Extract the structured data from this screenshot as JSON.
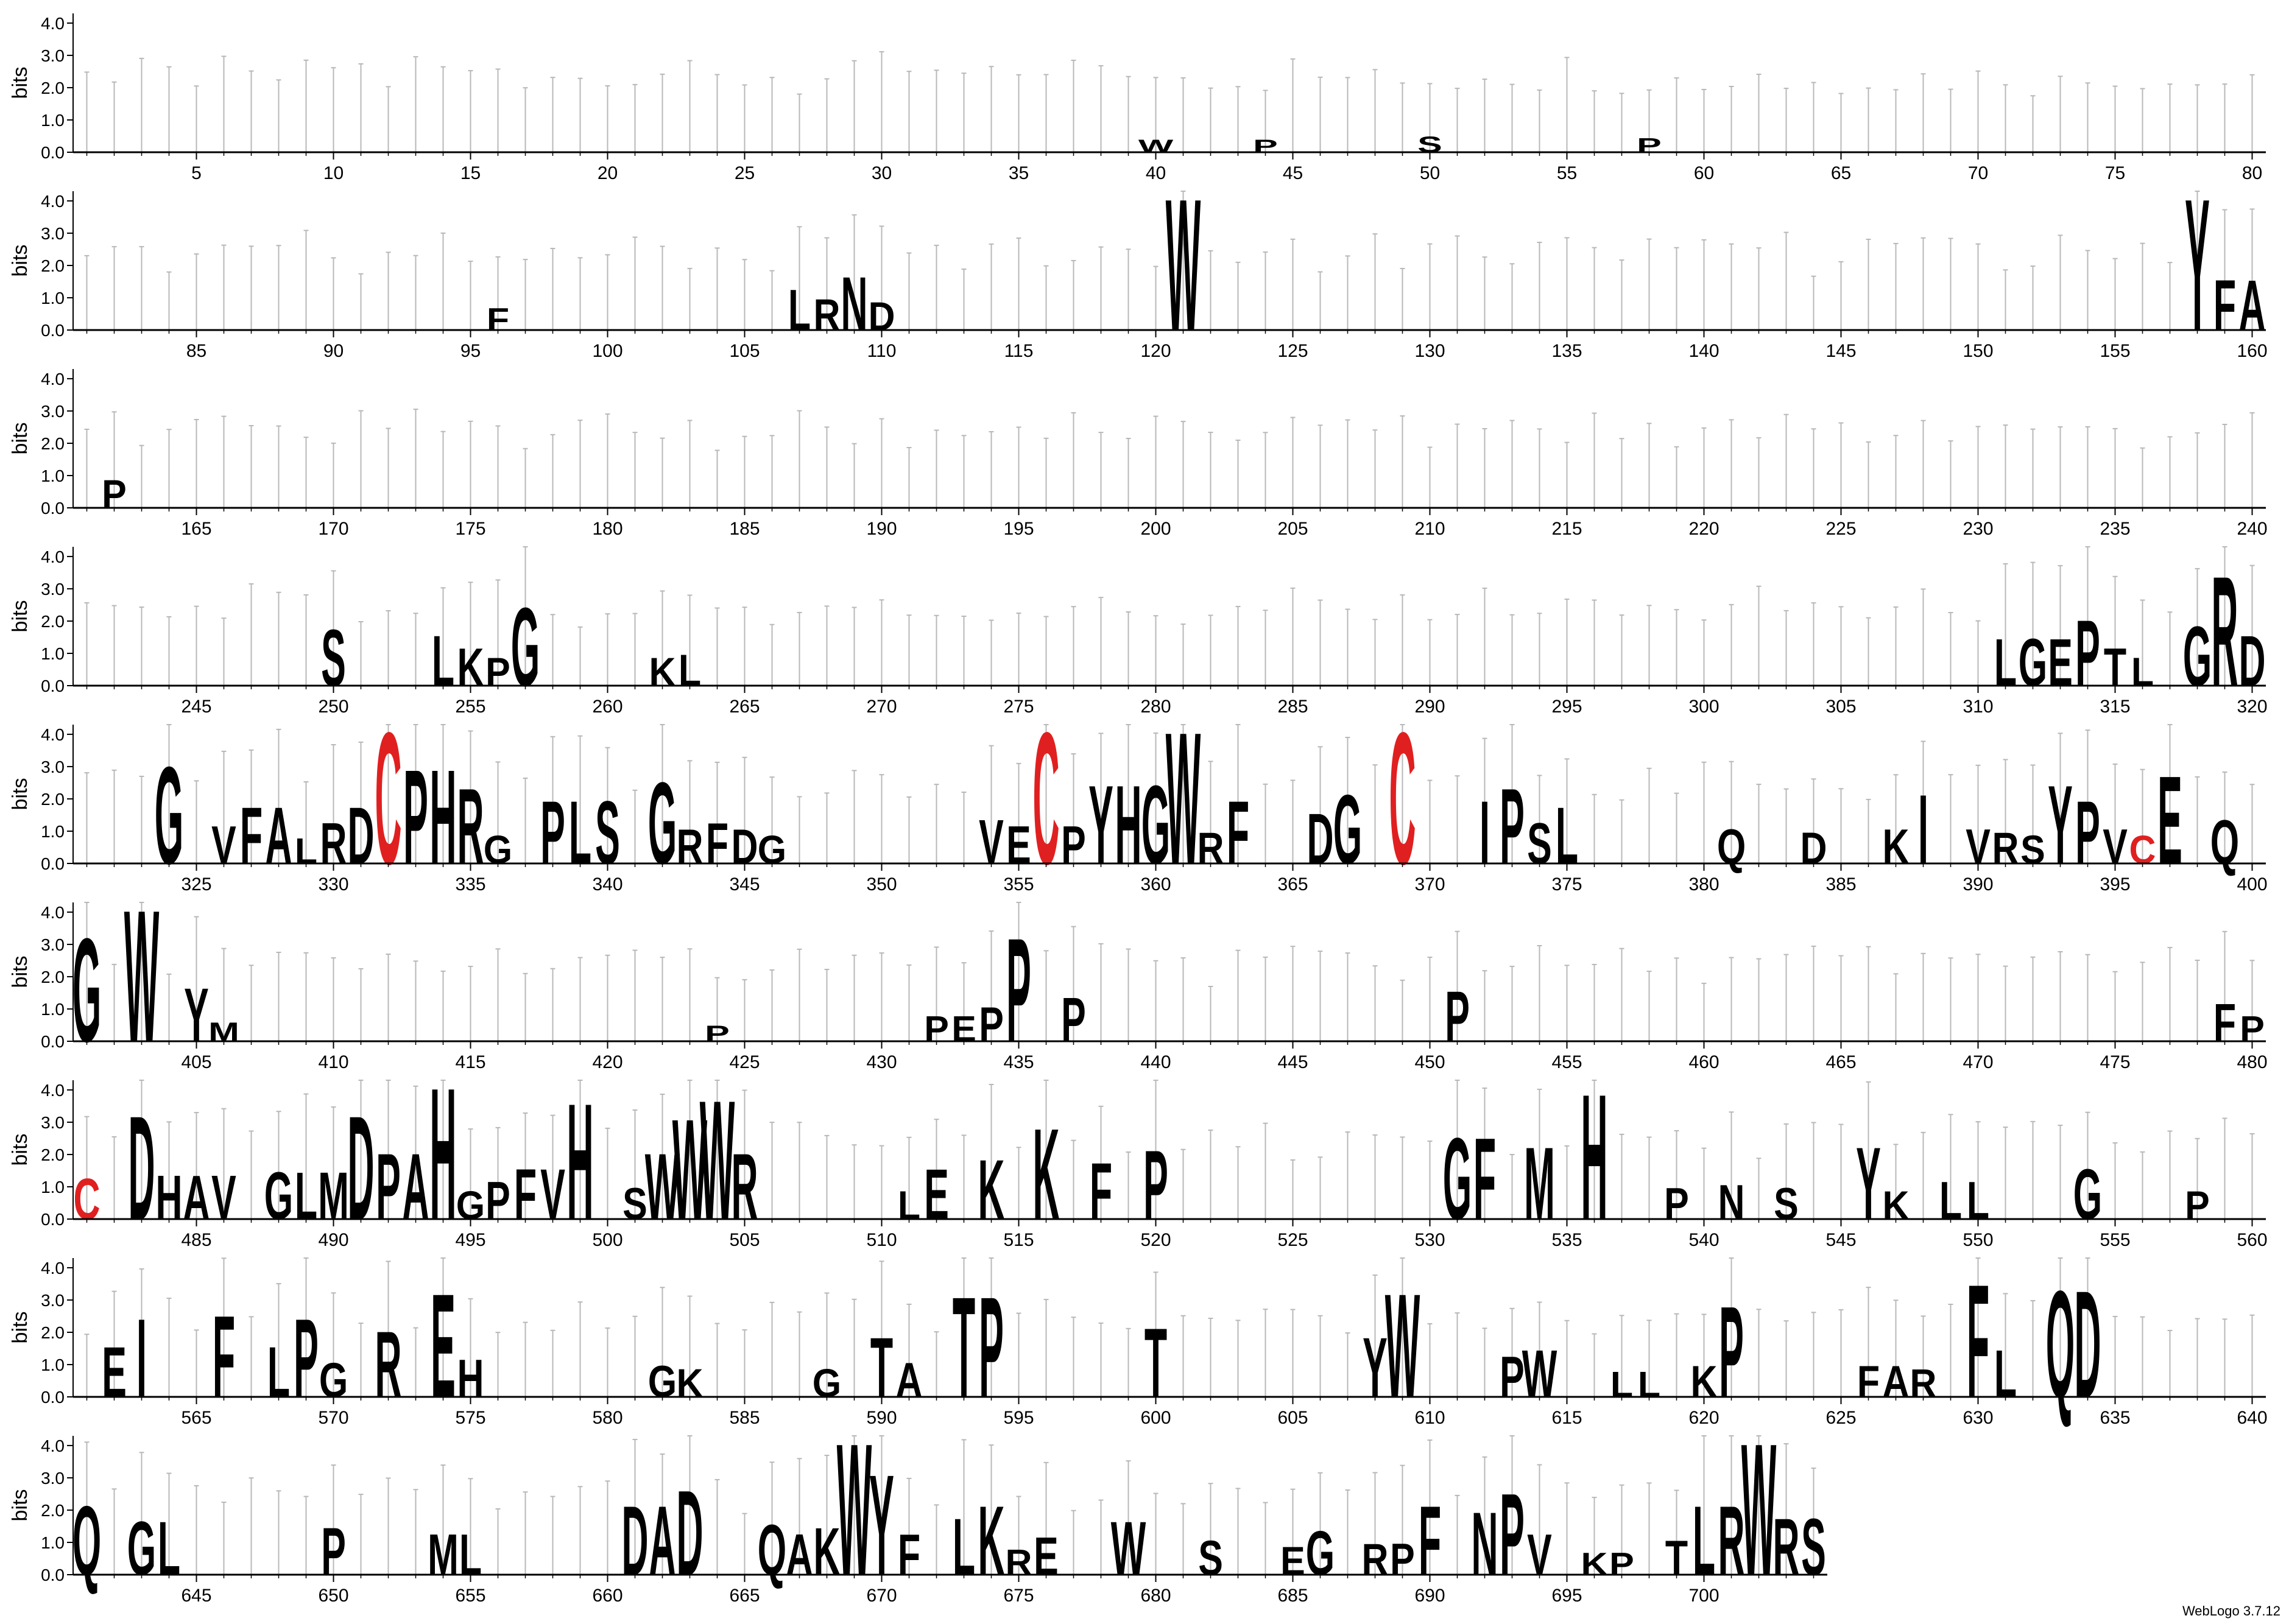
{
  "app": {
    "version_label": "WebLogo 3.7.12"
  },
  "colors": {
    "default_letter": "#000000",
    "cysteine": "#e02020",
    "error_bar": "#b8b8b8",
    "axis": "#000000"
  },
  "chart_data": {
    "type": "sequence-logo",
    "ylabel": "bits",
    "ylim": [
      0,
      4.3
    ],
    "yticks": [
      "0.0",
      "1.0",
      "2.0",
      "3.0",
      "4.0"
    ],
    "rows": [
      {
        "start": 1,
        "end": 80
      },
      {
        "start": 81,
        "end": 160
      },
      {
        "start": 161,
        "end": 240
      },
      {
        "start": 241,
        "end": 320
      },
      {
        "start": 321,
        "end": 400
      },
      {
        "start": 401,
        "end": 480
      },
      {
        "start": 481,
        "end": 560
      },
      {
        "start": 561,
        "end": 640
      },
      {
        "start": 641,
        "end": 704
      }
    ],
    "xtick_every": 5,
    "columns": [
      {
        "pos": 40,
        "l": "W",
        "h": 0.4
      },
      {
        "pos": 44,
        "l": "P",
        "h": 0.4
      },
      {
        "pos": 50,
        "l": "S",
        "h": 0.5
      },
      {
        "pos": 58,
        "l": "P",
        "h": 0.45
      },
      {
        "pos": 96,
        "l": "F",
        "h": 0.7
      },
      {
        "pos": 107,
        "l": "L",
        "h": 1.3
      },
      {
        "pos": 108,
        "l": "R",
        "h": 1.0
      },
      {
        "pos": 109,
        "l": "N",
        "h": 1.7
      },
      {
        "pos": 110,
        "l": "D",
        "h": 0.9
      },
      {
        "pos": 121,
        "l": "W",
        "h": 4.2
      },
      {
        "pos": 158,
        "l": "Y",
        "h": 4.2
      },
      {
        "pos": 159,
        "l": "F",
        "h": 1.6
      },
      {
        "pos": 160,
        "l": "A",
        "h": 1.6
      },
      {
        "pos": 162,
        "l": "P",
        "h": 0.9
      },
      {
        "pos": 250,
        "l": "S",
        "h": 1.8
      },
      {
        "pos": 254,
        "l": "L",
        "h": 1.6
      },
      {
        "pos": 255,
        "l": "K",
        "h": 1.2
      },
      {
        "pos": 256,
        "l": "P",
        "h": 0.9
      },
      {
        "pos": 257,
        "l": "G",
        "h": 2.5
      },
      {
        "pos": 262,
        "l": "K",
        "h": 0.9
      },
      {
        "pos": 263,
        "l": "L",
        "h": 1.0
      },
      {
        "pos": 311,
        "l": "L",
        "h": 1.5
      },
      {
        "pos": 312,
        "l": "G",
        "h": 1.5
      },
      {
        "pos": 313,
        "l": "E",
        "h": 1.5
      },
      {
        "pos": 314,
        "l": "P",
        "h": 2.1
      },
      {
        "pos": 315,
        "l": "T",
        "h": 1.2
      },
      {
        "pos": 316,
        "l": "L",
        "h": 0.9
      },
      {
        "pos": 318,
        "l": "G",
        "h": 1.9
      },
      {
        "pos": 319,
        "l": "R",
        "h": 3.5
      },
      {
        "pos": 320,
        "l": "D",
        "h": 1.6
      },
      {
        "pos": 324,
        "l": "G",
        "h": 3.1
      },
      {
        "pos": 326,
        "l": "V",
        "h": 1.2
      },
      {
        "pos": 327,
        "l": "F",
        "h": 1.8
      },
      {
        "pos": 328,
        "l": "A",
        "h": 1.8
      },
      {
        "pos": 329,
        "l": "L",
        "h": 0.8
      },
      {
        "pos": 330,
        "l": "R",
        "h": 1.3
      },
      {
        "pos": 331,
        "l": "D",
        "h": 1.8
      },
      {
        "pos": 332,
        "l": "C",
        "h": 4.2,
        "c": "red"
      },
      {
        "pos": 333,
        "l": "P",
        "h": 3.0
      },
      {
        "pos": 334,
        "l": "H",
        "h": 3.0
      },
      {
        "pos": 335,
        "l": "R",
        "h": 2.4
      },
      {
        "pos": 336,
        "l": "G",
        "h": 0.9
      },
      {
        "pos": 338,
        "l": "P",
        "h": 2.0
      },
      {
        "pos": 339,
        "l": "L",
        "h": 2.0
      },
      {
        "pos": 340,
        "l": "S",
        "h": 2.0
      },
      {
        "pos": 342,
        "l": "G",
        "h": 2.6
      },
      {
        "pos": 343,
        "l": "R",
        "h": 1.1
      },
      {
        "pos": 344,
        "l": "F",
        "h": 1.3
      },
      {
        "pos": 345,
        "l": "D",
        "h": 1.1
      },
      {
        "pos": 346,
        "l": "G",
        "h": 0.9
      },
      {
        "pos": 354,
        "l": "V",
        "h": 1.4
      },
      {
        "pos": 355,
        "l": "E",
        "h": 1.2
      },
      {
        "pos": 356,
        "l": "C",
        "h": 4.2,
        "c": "red"
      },
      {
        "pos": 357,
        "l": "P",
        "h": 1.2
      },
      {
        "pos": 358,
        "l": "Y",
        "h": 2.5
      },
      {
        "pos": 359,
        "l": "H",
        "h": 2.5
      },
      {
        "pos": 360,
        "l": "G",
        "h": 2.5
      },
      {
        "pos": 361,
        "l": "W",
        "h": 4.2
      },
      {
        "pos": 362,
        "l": "R",
        "h": 1.0
      },
      {
        "pos": 363,
        "l": "F",
        "h": 2.0
      },
      {
        "pos": 366,
        "l": "D",
        "h": 1.6
      },
      {
        "pos": 367,
        "l": "G",
        "h": 2.2
      },
      {
        "pos": 369,
        "l": "C",
        "h": 4.2,
        "c": "red"
      },
      {
        "pos": 372,
        "l": "I",
        "h": 2.0
      },
      {
        "pos": 373,
        "l": "P",
        "h": 2.4
      },
      {
        "pos": 374,
        "l": "S",
        "h": 1.3
      },
      {
        "pos": 375,
        "l": "L",
        "h": 1.8
      },
      {
        "pos": 381,
        "l": "Q",
        "h": 1.1
      },
      {
        "pos": 384,
        "l": "D",
        "h": 1.0
      },
      {
        "pos": 387,
        "l": "K",
        "h": 1.1
      },
      {
        "pos": 388,
        "l": "I",
        "h": 2.2
      },
      {
        "pos": 390,
        "l": "V",
        "h": 1.1
      },
      {
        "pos": 391,
        "l": "R",
        "h": 1.0
      },
      {
        "pos": 392,
        "l": "S",
        "h": 0.9
      },
      {
        "pos": 393,
        "l": "Y",
        "h": 2.5
      },
      {
        "pos": 394,
        "l": "P",
        "h": 2.0
      },
      {
        "pos": 395,
        "l": "V",
        "h": 1.1
      },
      {
        "pos": 396,
        "l": "C",
        "h": 0.9,
        "c": "red"
      },
      {
        "pos": 397,
        "l": "E",
        "h": 2.8
      },
      {
        "pos": 399,
        "l": "Q",
        "h": 1.4
      },
      {
        "pos": 401,
        "l": "G",
        "h": 3.3
      },
      {
        "pos": 403,
        "l": "W",
        "h": 4.2
      },
      {
        "pos": 405,
        "l": "Y",
        "h": 1.7
      },
      {
        "pos": 406,
        "l": "M",
        "h": 0.6
      },
      {
        "pos": 424,
        "l": "P",
        "h": 0.5
      },
      {
        "pos": 432,
        "l": "P",
        "h": 0.8
      },
      {
        "pos": 433,
        "l": "E",
        "h": 0.8
      },
      {
        "pos": 434,
        "l": "P",
        "h": 1.1
      },
      {
        "pos": 435,
        "l": "P",
        "h": 3.3
      },
      {
        "pos": 437,
        "l": "P",
        "h": 1.4
      },
      {
        "pos": 451,
        "l": "P",
        "h": 1.6
      },
      {
        "pos": 479,
        "l": "F",
        "h": 1.2
      },
      {
        "pos": 480,
        "l": "P",
        "h": 0.8
      },
      {
        "pos": 481,
        "l": "C",
        "h": 1.3,
        "c": "red"
      },
      {
        "pos": 483,
        "l": "D",
        "h": 3.3
      },
      {
        "pos": 484,
        "l": "H",
        "h": 1.4
      },
      {
        "pos": 485,
        "l": "A",
        "h": 1.4
      },
      {
        "pos": 486,
        "l": "V",
        "h": 1.4
      },
      {
        "pos": 488,
        "l": "G",
        "h": 1.5
      },
      {
        "pos": 489,
        "l": "L",
        "h": 1.5
      },
      {
        "pos": 490,
        "l": "M",
        "h": 1.5
      },
      {
        "pos": 491,
        "l": "D",
        "h": 3.3
      },
      {
        "pos": 492,
        "l": "P",
        "h": 2.1
      },
      {
        "pos": 493,
        "l": "A",
        "h": 2.1
      },
      {
        "pos": 494,
        "l": "H",
        "h": 4.2
      },
      {
        "pos": 495,
        "l": "G",
        "h": 0.9
      },
      {
        "pos": 496,
        "l": "P",
        "h": 1.2
      },
      {
        "pos": 497,
        "l": "F",
        "h": 1.6
      },
      {
        "pos": 498,
        "l": "V",
        "h": 1.6
      },
      {
        "pos": 499,
        "l": "H",
        "h": 3.7
      },
      {
        "pos": 501,
        "l": "S",
        "h": 1.0
      },
      {
        "pos": 502,
        "l": "W",
        "h": 2.1
      },
      {
        "pos": 503,
        "l": "W",
        "h": 3.2
      },
      {
        "pos": 504,
        "l": "W",
        "h": 3.8
      },
      {
        "pos": 505,
        "l": "R",
        "h": 2.1
      },
      {
        "pos": 511,
        "l": "L",
        "h": 0.9
      },
      {
        "pos": 512,
        "l": "E",
        "h": 1.6
      },
      {
        "pos": 514,
        "l": "K",
        "h": 1.9
      },
      {
        "pos": 516,
        "l": "K",
        "h": 2.9
      },
      {
        "pos": 518,
        "l": "F",
        "h": 1.8
      },
      {
        "pos": 520,
        "l": "P",
        "h": 2.2
      },
      {
        "pos": 531,
        "l": "G",
        "h": 2.6
      },
      {
        "pos": 532,
        "l": "F",
        "h": 2.6
      },
      {
        "pos": 534,
        "l": "M",
        "h": 2.3
      },
      {
        "pos": 536,
        "l": "H",
        "h": 4.0
      },
      {
        "pos": 539,
        "l": "P",
        "h": 1.0
      },
      {
        "pos": 541,
        "l": "N",
        "h": 1.1
      },
      {
        "pos": 543,
        "l": "S",
        "h": 1.0
      },
      {
        "pos": 546,
        "l": "Y",
        "h": 2.3
      },
      {
        "pos": 547,
        "l": "K",
        "h": 0.9
      },
      {
        "pos": 549,
        "l": "L",
        "h": 1.2
      },
      {
        "pos": 550,
        "l": "L",
        "h": 1.2
      },
      {
        "pos": 554,
        "l": "G",
        "h": 1.6
      },
      {
        "pos": 558,
        "l": "P",
        "h": 0.9
      },
      {
        "pos": 562,
        "l": "E",
        "h": 1.6
      },
      {
        "pos": 563,
        "l": "I",
        "h": 2.5
      },
      {
        "pos": 566,
        "l": "F",
        "h": 2.6
      },
      {
        "pos": 568,
        "l": "L",
        "h": 1.6
      },
      {
        "pos": 569,
        "l": "P",
        "h": 2.5
      },
      {
        "pos": 570,
        "l": "G",
        "h": 1.1
      },
      {
        "pos": 572,
        "l": "R",
        "h": 2.1
      },
      {
        "pos": 574,
        "l": "E",
        "h": 3.3
      },
      {
        "pos": 575,
        "l": "H",
        "h": 1.2
      },
      {
        "pos": 582,
        "l": "G",
        "h": 1.0
      },
      {
        "pos": 583,
        "l": "K",
        "h": 0.9
      },
      {
        "pos": 588,
        "l": "G",
        "h": 0.9
      },
      {
        "pos": 590,
        "l": "T",
        "h": 1.9
      },
      {
        "pos": 591,
        "l": "A",
        "h": 1.1
      },
      {
        "pos": 593,
        "l": "T",
        "h": 3.2
      },
      {
        "pos": 594,
        "l": "P",
        "h": 3.2
      },
      {
        "pos": 600,
        "l": "T",
        "h": 2.2
      },
      {
        "pos": 608,
        "l": "Y",
        "h": 1.9
      },
      {
        "pos": 609,
        "l": "W",
        "h": 3.3
      },
      {
        "pos": 613,
        "l": "P",
        "h": 1.3
      },
      {
        "pos": 614,
        "l": "W",
        "h": 1.5
      },
      {
        "pos": 617,
        "l": "L",
        "h": 0.8
      },
      {
        "pos": 618,
        "l": "L",
        "h": 0.8
      },
      {
        "pos": 620,
        "l": "K",
        "h": 1.0
      },
      {
        "pos": 621,
        "l": "P",
        "h": 2.9
      },
      {
        "pos": 626,
        "l": "F",
        "h": 1.0
      },
      {
        "pos": 627,
        "l": "A",
        "h": 1.0
      },
      {
        "pos": 628,
        "l": "R",
        "h": 0.9
      },
      {
        "pos": 630,
        "l": "F",
        "h": 3.6
      },
      {
        "pos": 631,
        "l": "L",
        "h": 1.5
      },
      {
        "pos": 633,
        "l": "Q",
        "h": 3.4
      },
      {
        "pos": 634,
        "l": "D",
        "h": 3.4
      },
      {
        "pos": 641,
        "l": "Q",
        "h": 2.2
      },
      {
        "pos": 643,
        "l": "G",
        "h": 1.7
      },
      {
        "pos": 644,
        "l": "L",
        "h": 1.7
      },
      {
        "pos": 650,
        "l": "P",
        "h": 1.5
      },
      {
        "pos": 654,
        "l": "M",
        "h": 1.3
      },
      {
        "pos": 655,
        "l": "L",
        "h": 1.3
      },
      {
        "pos": 661,
        "l": "D",
        "h": 2.2
      },
      {
        "pos": 662,
        "l": "A",
        "h": 2.2
      },
      {
        "pos": 663,
        "l": "D",
        "h": 2.7
      },
      {
        "pos": 666,
        "l": "Q",
        "h": 1.6
      },
      {
        "pos": 667,
        "l": "A",
        "h": 1.3
      },
      {
        "pos": 668,
        "l": "K",
        "h": 1.5
      },
      {
        "pos": 669,
        "l": "W",
        "h": 4.2
      },
      {
        "pos": 670,
        "l": "Y",
        "h": 3.2
      },
      {
        "pos": 671,
        "l": "F",
        "h": 1.3
      },
      {
        "pos": 673,
        "l": "L",
        "h": 1.8
      },
      {
        "pos": 674,
        "l": "K",
        "h": 2.2
      },
      {
        "pos": 675,
        "l": "R",
        "h": 0.8
      },
      {
        "pos": 676,
        "l": "E",
        "h": 1.2
      },
      {
        "pos": 679,
        "l": "W",
        "h": 1.7
      },
      {
        "pos": 682,
        "l": "S",
        "h": 1.1
      },
      {
        "pos": 685,
        "l": "E",
        "h": 0.9
      },
      {
        "pos": 686,
        "l": "G",
        "h": 1.4
      },
      {
        "pos": 688,
        "l": "R",
        "h": 1.0
      },
      {
        "pos": 689,
        "l": "P",
        "h": 1.0
      },
      {
        "pos": 690,
        "l": "F",
        "h": 2.2
      },
      {
        "pos": 692,
        "l": "N",
        "h": 2.0
      },
      {
        "pos": 693,
        "l": "P",
        "h": 2.6
      },
      {
        "pos": 694,
        "l": "V",
        "h": 1.3
      },
      {
        "pos": 696,
        "l": "K",
        "h": 0.7
      },
      {
        "pos": 697,
        "l": "P",
        "h": 0.7
      },
      {
        "pos": 699,
        "l": "T",
        "h": 1.1
      },
      {
        "pos": 700,
        "l": "L",
        "h": 2.2
      },
      {
        "pos": 701,
        "l": "R",
        "h": 2.2
      },
      {
        "pos": 702,
        "l": "W",
        "h": 4.2
      },
      {
        "pos": 703,
        "l": "R",
        "h": 1.8
      },
      {
        "pos": 704,
        "l": "S",
        "h": 1.8
      }
    ]
  }
}
